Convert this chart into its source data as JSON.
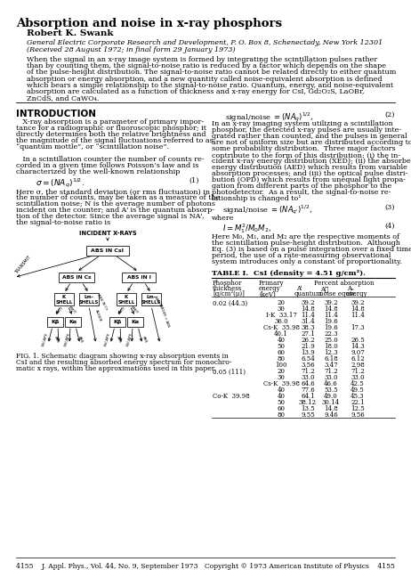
{
  "title": "Absorption and noise in x-ray phosphors",
  "author": "Robert K. Swank",
  "affiliation": "General Electric Corporate Research and Development, P. O. Box 8, Schenectady, New York 12301",
  "received": "(Received 28 August 1972; in final form 29 January 1973)",
  "abstract_lines": [
    "When the signal in an x-ray image system is formed by integrating the scintillation pulses rather",
    "than by counting them, the signal-to-noise ratio is reduced by a factor which depends on the shape",
    "of the pulse-height distribution. The signal-to-noise ratio cannot be related directly to either quantum",
    "absorption or energy absorption, and a new quantity called noise-equivalent absorption is defined",
    "which bears a simple relationship to the signal-to-noise ratio. Quantum, energy, and noise-equivalent",
    "absorption are calculated as a function of thickness and x-ray energy for CsI, Gd₂O₂S, LaOBr,",
    "ZnCdS, and CaWO₄."
  ],
  "intro_heading": "INTRODUCTION",
  "left_col_lines": [
    {
      "text": "   X-ray absorption is a parameter of primary impor-",
      "indent": 0
    },
    {
      "text": "tance for a radiographic or fluoroscopic phosphor; it",
      "indent": 0
    },
    {
      "text": "directly determines both the relative brightness and",
      "indent": 0
    },
    {
      "text": "the magnitude of the signal fluctuations referred to as",
      "indent": 0
    },
    {
      "text": "“quantum mottle”, or “scintillation noise”.",
      "indent": 0
    },
    {
      "text": "",
      "indent": 0
    },
    {
      "text": "   In a scintillation counter the number of counts re-",
      "indent": 0
    },
    {
      "text": "corded in a given time follows Poisson’s law and is",
      "indent": 0
    },
    {
      "text": "characterized by the well-known relationship",
      "indent": 0
    }
  ],
  "left_col_lines2": [
    {
      "text": "Here σ, the standard deviation (or rms fluctuation) in",
      "indent": 0
    },
    {
      "text": "the number of counts, may be taken as a measure of the",
      "indent": 0
    },
    {
      "text": "scintillation noise; N is the average number of photons",
      "indent": 0
    },
    {
      "text": "incident on the counter; and Aⁱ is the quantum absorp-",
      "indent": 0
    },
    {
      "text": "tion of the detector. Since the average signal is NAⁱ,",
      "indent": 0
    },
    {
      "text": "the signal-to-noise ratio is",
      "indent": 0
    }
  ],
  "right_col_lines": [
    {
      "text": "In an x-ray imaging system utilizing a scintillation",
      "indent": 0
    },
    {
      "text": "phosphor, the detected x-ray pulses are usually inte-",
      "indent": 0
    },
    {
      "text": "grated rather than counted, and the pulses in general",
      "indent": 0
    },
    {
      "text": "are not of uniform size but are distributed according to",
      "indent": 0
    },
    {
      "text": "some probability distribution.  Three major factors",
      "indent": 0
    },
    {
      "text": "contribute to the form of this distribution: (i) the in-",
      "indent": 0
    },
    {
      "text": "cident x-ray energy distribution (XED); (ii) the absorbed",
      "indent": 0
    },
    {
      "text": "energy distribution (AED) which results from variable",
      "indent": 0
    },
    {
      "text": "absorption processes; and (iii) the optical pulse distri-",
      "indent": 0
    },
    {
      "text": "bution (OPD) which results from unequal light propa-",
      "indent": 0
    },
    {
      "text": "gation from different parts of the phosphor to the",
      "indent": 0
    },
    {
      "text": "photodetector.  As a result, the signal-to-noise re-",
      "indent": 0
    },
    {
      "text": "lationship is changed to¹",
      "indent": 0
    }
  ],
  "right_col_lines2": [
    {
      "text": "where",
      "indent": 0
    }
  ],
  "right_col_lines3": [
    {
      "text": "Here M₀, M₁, and M₂ are the respective moments of",
      "indent": 0
    },
    {
      "text": "the scintillation pulse-height distribution.  Although",
      "indent": 0
    },
    {
      "text": "Eq. (3) is based on a pulse integration over a fixed time",
      "indent": 0
    },
    {
      "text": "period, the use of a rate-measuring observational",
      "indent": 0
    },
    {
      "text": "system introduces only a constant of proportionality.",
      "indent": 0
    }
  ],
  "table_title": "TABLE I.  CsI (density = 4.51 g/cm²).",
  "table_col_headers": [
    "Phosphor\nthickness\n[g/cm²(μ)]",
    "Primary\nenergy\n(keV)",
    "Aⁱ\nquantum",
    "A⁳\nnoise equiv.",
    "Aₑ\nenergy"
  ],
  "table_data": [
    [
      "0.02 (44.3)",
      "20",
      "39.2",
      "39.2",
      "39.2"
    ],
    [
      "",
      "30",
      "14.8",
      "14.8",
      "14.8"
    ],
    [
      "",
      "I-K  33.17",
      "11.4",
      "11.4",
      "11.4"
    ],
    [
      "",
      "36.0",
      "31.4",
      "19.6",
      ""
    ],
    [
      "",
      "Cs-K  35.98",
      "38.3",
      "19.6",
      "17.3"
    ],
    [
      "",
      "40.1",
      "27.1",
      "22.3",
      ""
    ],
    [
      "",
      "40",
      "26.2",
      "25.0",
      "26.5"
    ],
    [
      "",
      "50",
      "21.9",
      "18.0",
      "14.3"
    ],
    [
      "",
      "60",
      "13.9",
      "12.3",
      "9.07"
    ],
    [
      "",
      "80",
      "6.54",
      "6.18",
      "6.12"
    ],
    [
      "",
      "100",
      "3.56",
      "3.47",
      "2.98"
    ],
    [
      "0.05 (111)",
      "20",
      "71.2",
      "71.2",
      "71.2"
    ],
    [
      "",
      "30",
      "33.0",
      "33.0",
      "33.0"
    ],
    [
      "",
      "Cs-K  39.98",
      "64.6",
      "46.6",
      "42.5"
    ],
    [
      "",
      "40",
      "77.6",
      "53.5",
      "49.5"
    ],
    [
      "Co-K  39.98",
      "40",
      "64.1",
      "49.0",
      "45.3"
    ],
    [
      "",
      "50",
      "38.12",
      "30.14",
      "22.1"
    ],
    [
      "",
      "60",
      "13.5",
      "14.8",
      "12.5"
    ],
    [
      "",
      "80",
      "9.55",
      "9.46",
      "9.56"
    ]
  ],
  "fig_caption_lines": [
    "FIG. 1. Schematic diagram showing x-ray absorption events in",
    "CsI and the resulting absorbed energy spectrum for monochro-",
    "matic x rays, within the approximations used in this paper."
  ],
  "footer_left": "4155    J. Appl. Phys., Vol. 44, No. 9, September 1973",
  "footer_right": "Copyright © 1973 American Institute of Physics    4155"
}
